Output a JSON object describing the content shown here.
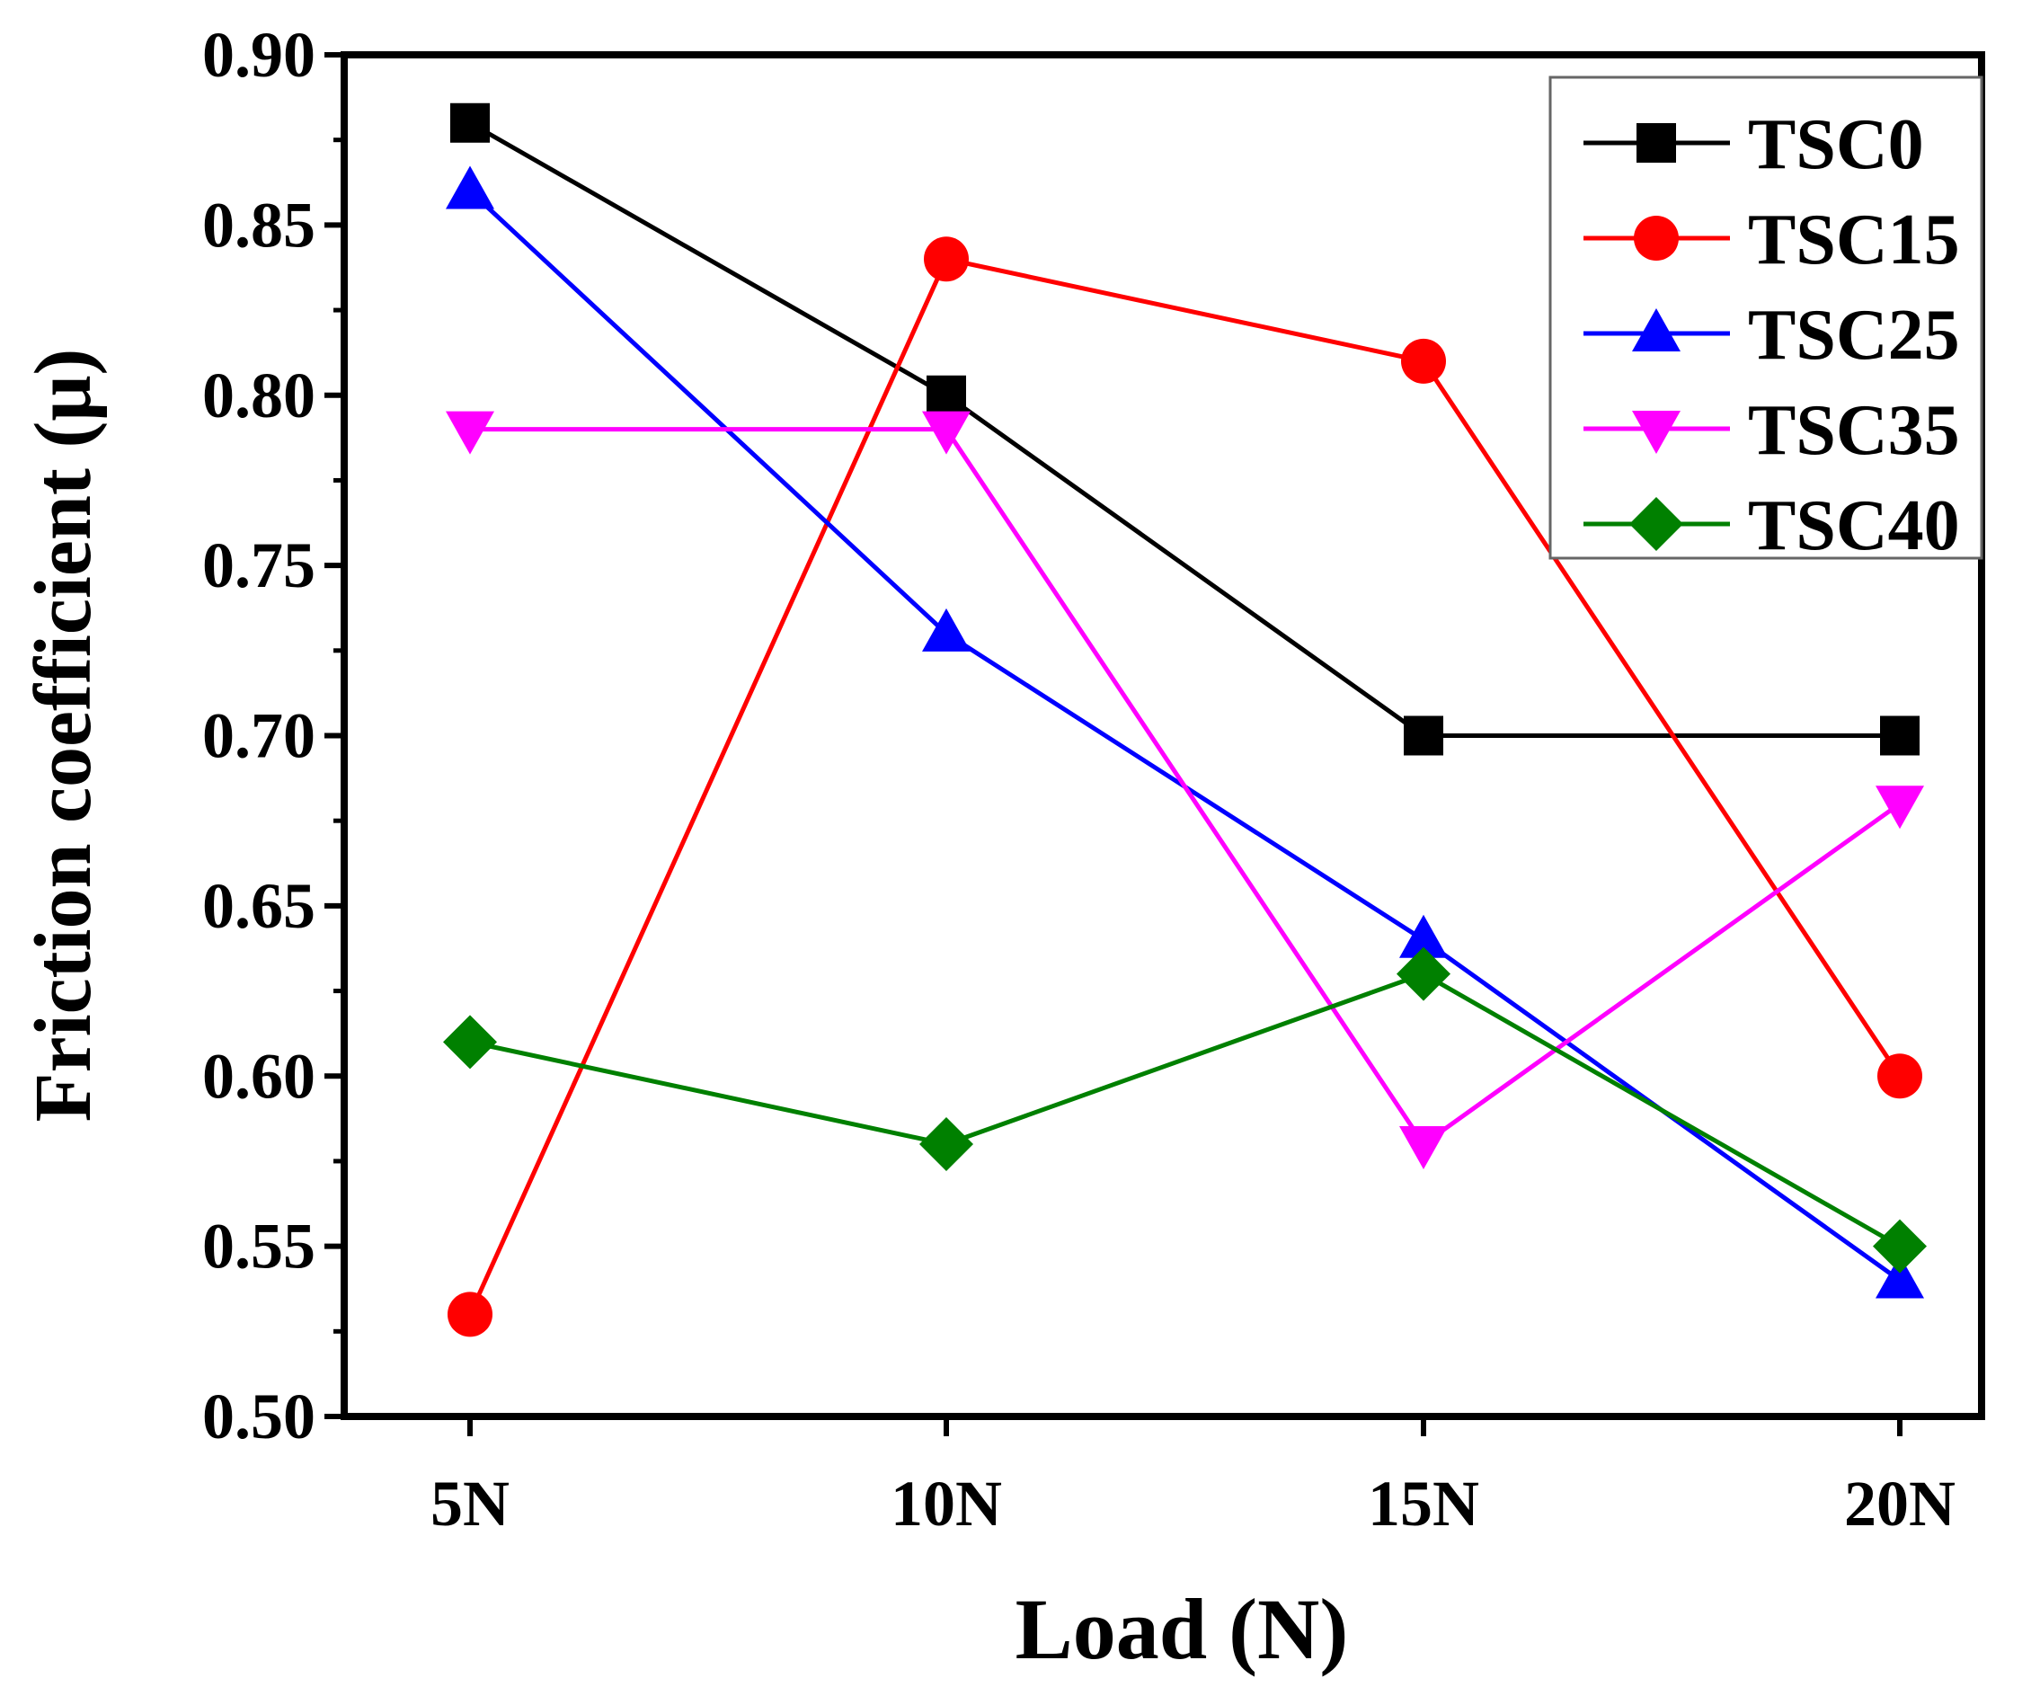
{
  "chart_data": {
    "type": "line",
    "title": "",
    "xlabel": "Load (N)",
    "ylabel": "Friction coefficient (μ)",
    "categories": [
      "5N",
      "10N",
      "15N",
      "20N"
    ],
    "ylim": [
      0.5,
      0.9
    ],
    "yticks": [
      "0.50",
      "0.55",
      "0.60",
      "0.65",
      "0.70",
      "0.75",
      "0.80",
      "0.85",
      "0.90"
    ],
    "legend_position": "top-right",
    "series": [
      {
        "name": "TSC0",
        "marker": "square",
        "color": "#000000",
        "values": [
          0.88,
          0.8,
          0.7,
          0.7
        ]
      },
      {
        "name": "TSC15",
        "marker": "circle",
        "color": "#ff0000",
        "values": [
          0.53,
          0.84,
          0.81,
          0.6
        ]
      },
      {
        "name": "TSC25",
        "marker": "triangle-up",
        "color": "#0000ff",
        "values": [
          0.86,
          0.73,
          0.64,
          0.54
        ]
      },
      {
        "name": "TSC35",
        "marker": "triangle-down",
        "color": "#ff00ff",
        "values": [
          0.79,
          0.79,
          0.58,
          0.68
        ]
      },
      {
        "name": "TSC40",
        "marker": "diamond",
        "color": "#008000",
        "values": [
          0.61,
          0.58,
          0.63,
          0.55
        ]
      }
    ]
  }
}
